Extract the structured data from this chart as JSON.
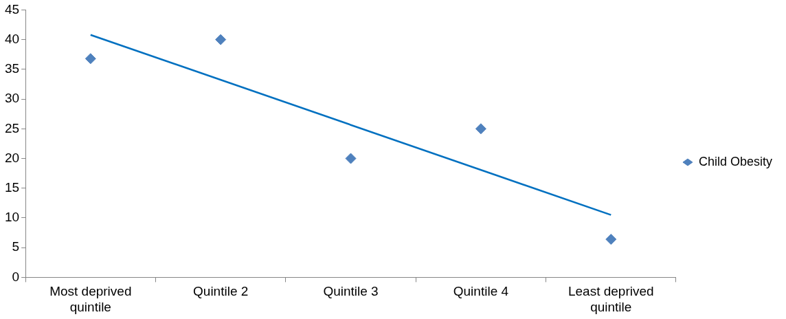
{
  "chart_data": {
    "type": "scatter",
    "categories": [
      "Most deprived quintile",
      "Quintile 2",
      "Quintile 3",
      "Quintile 4",
      "Least deprived quintile"
    ],
    "series": [
      {
        "name": "Child Obesity",
        "color": "#4f81bd",
        "values": [
          36.8,
          40,
          20,
          25,
          6.4
        ],
        "marker": "diamond"
      },
      {
        "type": "line",
        "color": "#0070c0",
        "x": [
          "Most deprived quintile",
          "Least deprived quintile"
        ],
        "values": [
          40.8,
          10.5
        ],
        "marker": "none"
      }
    ],
    "ylim": [
      0,
      45
    ],
    "yticks": [
      0,
      5,
      10,
      15,
      20,
      25,
      30,
      35,
      40,
      45
    ],
    "grid": false,
    "legend": "right",
    "line_style": "solid"
  }
}
